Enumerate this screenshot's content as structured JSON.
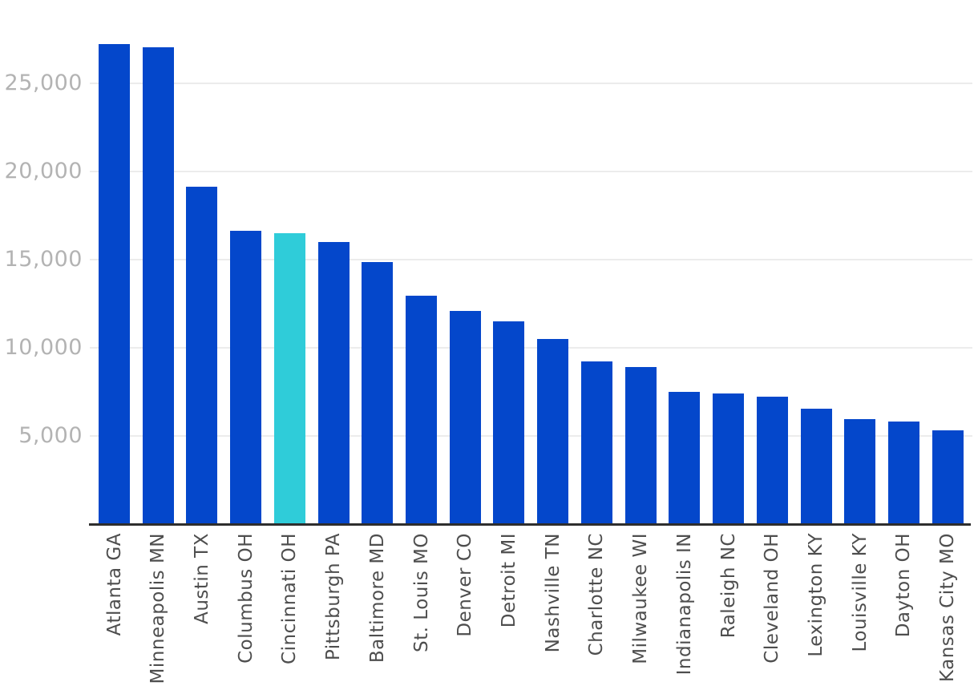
{
  "chart_data": {
    "type": "bar",
    "categories": [
      "Atlanta GA",
      "Minneapolis MN",
      "Austin TX",
      "Columbus OH",
      "Cincinnati OH",
      "Pittsburgh PA",
      "Baltimore MD",
      "St. Louis MO",
      "Denver CO",
      "Detroit MI",
      "Nashville TN",
      "Charlotte NC",
      "Milwaukee WI",
      "Indianapolis IN",
      "Raleigh NC",
      "Cleveland OH",
      "Lexington KY",
      "Louisville KY",
      "Dayton OH",
      "Kansas City MO"
    ],
    "values": [
      27200,
      27000,
      19100,
      16600,
      16450,
      15950,
      14850,
      12950,
      12050,
      11500,
      10500,
      9200,
      8900,
      7500,
      7400,
      7200,
      6550,
      5950,
      5800,
      5300
    ],
    "highlight_category": "Cincinnati OH",
    "yticks": [
      5000,
      10000,
      15000,
      20000,
      25000
    ],
    "ytick_labels": [
      "5,000",
      "10,000",
      "15,000",
      "20,000",
      "25,000"
    ],
    "ylim": [
      0,
      28000
    ],
    "grid": "horizontal-only",
    "legend": "none",
    "colors": {
      "bar": "#0447cb",
      "highlight": "#2fccd9",
      "gridline": "#ececec",
      "axis_line": "#2e2e2e",
      "ytick_text": "#b3b3b3",
      "xtick_text": "#4e4e4e",
      "background": "#ffffff"
    }
  }
}
